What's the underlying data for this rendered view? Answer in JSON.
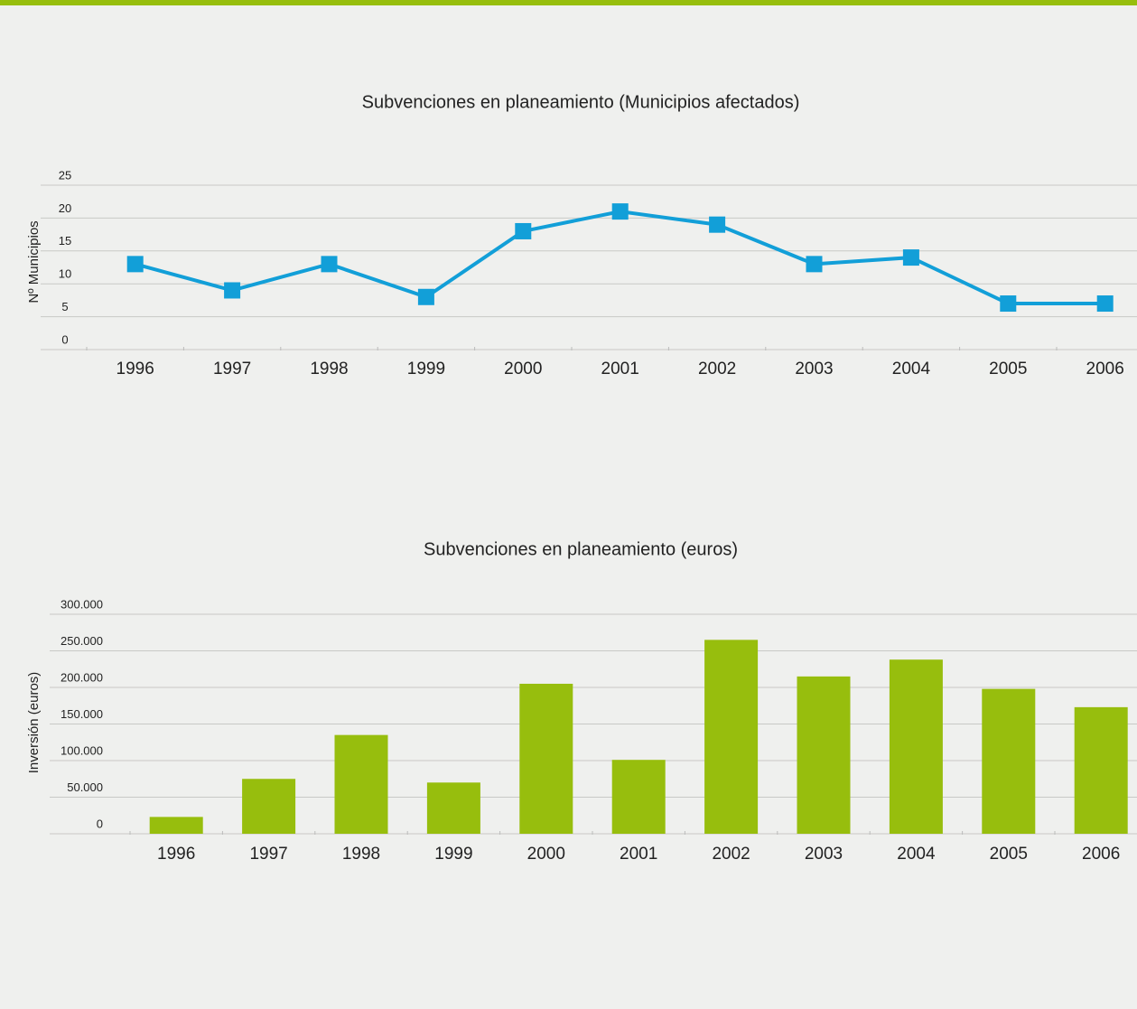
{
  "chart_data": [
    {
      "type": "line",
      "title": "Subvenciones en planeamiento (Municipios afectados)",
      "y_label": "Nº Municipios",
      "categories": [
        "1996",
        "1997",
        "1998",
        "1999",
        "2000",
        "2001",
        "2002",
        "2003",
        "2004",
        "2005",
        "2006"
      ],
      "values": [
        13,
        9,
        13,
        8,
        18,
        21,
        19,
        13,
        14,
        7,
        7
      ],
      "color": "#129fd8",
      "ylim": [
        0,
        25
      ],
      "yticks": [
        0,
        5,
        10,
        15,
        20,
        25
      ],
      "grid": true
    },
    {
      "type": "bar",
      "title": "Subvenciones en planeamiento (euros)",
      "y_label": "Inversión (euros)",
      "categories": [
        "1996",
        "1997",
        "1998",
        "1999",
        "2000",
        "2001",
        "2002",
        "2003",
        "2004",
        "2005",
        "2006"
      ],
      "values": [
        23000,
        75000,
        135000,
        70000,
        205000,
        101000,
        265000,
        215000,
        238000,
        198000,
        173000
      ],
      "color": "#97be0d",
      "ylim": [
        0,
        300000
      ],
      "yticks": [
        0,
        {
          "value": 50000,
          "label": "50.000"
        },
        {
          "value": 100000,
          "label": "100.000"
        },
        {
          "value": 150000,
          "label": "150.000"
        },
        {
          "value": 200000,
          "label": "200.000"
        },
        {
          "value": 250000,
          "label": "250.000"
        },
        {
          "value": 300000,
          "label": "300.000"
        }
      ],
      "grid": true
    }
  ]
}
